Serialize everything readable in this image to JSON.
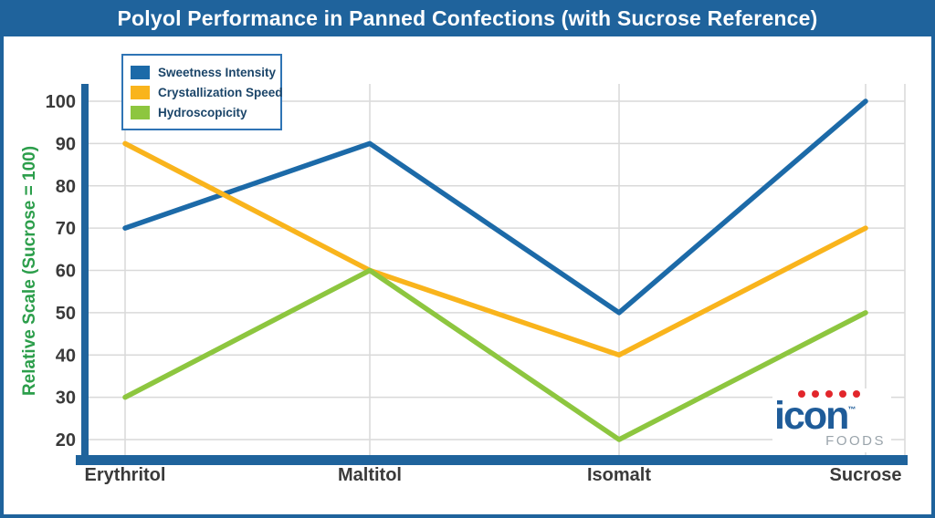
{
  "title": "Polyol Performance in Panned Confections (with Sucrose Reference)",
  "y_axis_label": "Relative Scale (Sucrose = 100)",
  "logo": {
    "brand": "icon",
    "tm": "™",
    "sub": "FOODS"
  },
  "colors": {
    "frame_blue": "#1f639c",
    "grid": "#d9d9d9",
    "tick_text": "#3a3a3a",
    "y_axis_label_green": "#2c9e4b",
    "legend_text": "#1b4569",
    "legend_border": "#2f74b5",
    "logo_blue": "#1f5c99",
    "logo_gray": "#9aa4ab",
    "logo_red": "#e2262b"
  },
  "chart_data": {
    "type": "line",
    "title": "Polyol Performance in Panned Confections (with Sucrose Reference)",
    "xlabel": "",
    "ylabel": "Relative Scale (Sucrose = 100)",
    "categories": [
      "Erythritol",
      "Maltitol",
      "Isomalt",
      "Sucrose"
    ],
    "series": [
      {
        "name": "Sweetness Intensity",
        "color": "#1c6aa8",
        "values": [
          70,
          90,
          50,
          100
        ]
      },
      {
        "name": "Crystallization Speed",
        "color": "#f9b41c",
        "values": [
          90,
          60,
          40,
          70
        ]
      },
      {
        "name": "Hydroscopicity",
        "color": "#8dc63f",
        "values": [
          30,
          60,
          20,
          50
        ]
      }
    ],
    "yticks": [
      20,
      30,
      40,
      50,
      60,
      70,
      80,
      90,
      100
    ],
    "ylim": [
      20,
      100
    ],
    "grid": true,
    "legend_position": "top-left"
  }
}
